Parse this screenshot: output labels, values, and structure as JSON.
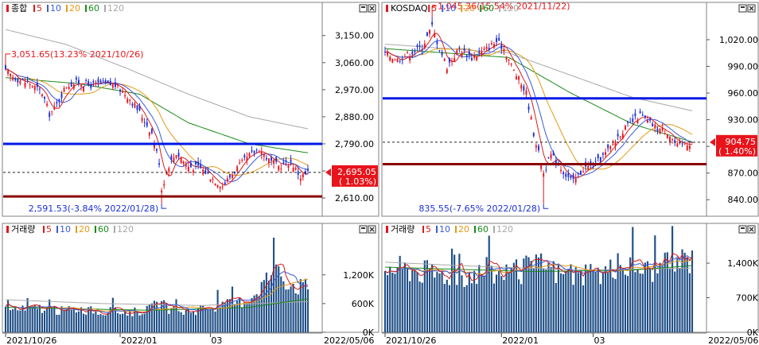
{
  "colors": {
    "up": "#e8141c",
    "down": "#1b2fd6",
    "ma5": "#d81b1b",
    "ma10": "#3b5bd8",
    "ma20": "#e39a17",
    "ma60": "#1a8a1a",
    "ma120": "#a8a8a8",
    "support": "#8b0000",
    "resistance": "#0018e6",
    "volume": "#1f4f86",
    "price_badge": "#e8141c"
  },
  "icons": {
    "maximize": "maximize-icon",
    "close": "close-icon",
    "price_marker": "triangle-left-icon"
  },
  "legend_labels": {
    "ma5": "5",
    "ma10": "10",
    "ma20": "20",
    "ma60": "60",
    "ma120": "120"
  },
  "x_labels": [
    "2021/10/26",
    "2022/01",
    "03",
    "2022/05/06"
  ],
  "chart_data": [
    {
      "type": "candlestick",
      "panel": "top-left",
      "legend_title": "종합",
      "legend": [
        "5",
        "10",
        "20",
        "60",
        "120"
      ],
      "ylim": [
        2560,
        3210
      ],
      "yticks": [
        2610,
        2700,
        2790,
        2880,
        2970,
        3060,
        3150
      ],
      "ytick_labels": [
        "2,610.00",
        "",
        "2,790.00",
        "2,880.00",
        "2,970.00",
        "3,060.00",
        "3,150.00"
      ],
      "current": {
        "value": 2695.05,
        "label": "2,695.05",
        "change": "( 1.03%)"
      },
      "hlines": [
        {
          "role": "resistance",
          "value": 2790
        },
        {
          "role": "support",
          "value": 2615
        }
      ],
      "dashed_line": 2695.05,
      "annotations": [
        {
          "text": "3,051.65(13.23% 2021/10/26)",
          "x_index": 0,
          "value": 3051.65
        },
        {
          "text": "2,591.53(-3.84% 2022/01/28)",
          "x_index": 64,
          "value": 2591.53
        }
      ],
      "anchors": [
        [
          0,
          3030
        ],
        [
          5,
          3005
        ],
        [
          10,
          2990
        ],
        [
          15,
          2960
        ],
        [
          18,
          2890
        ],
        [
          20,
          2905
        ],
        [
          25,
          2985
        ],
        [
          30,
          2995
        ],
        [
          35,
          2985
        ],
        [
          40,
          2990
        ],
        [
          45,
          2985
        ],
        [
          50,
          2950
        ],
        [
          55,
          2895
        ],
        [
          60,
          2825
        ],
        [
          63,
          2730
        ],
        [
          64,
          2640
        ],
        [
          67,
          2720
        ],
        [
          70,
          2760
        ],
        [
          75,
          2715
        ],
        [
          80,
          2710
        ],
        [
          85,
          2675
        ],
        [
          89,
          2650
        ],
        [
          95,
          2710
        ],
        [
          100,
          2750
        ],
        [
          104,
          2775
        ],
        [
          108,
          2735
        ],
        [
          112,
          2715
        ],
        [
          117,
          2730
        ],
        [
          121,
          2680
        ],
        [
          124,
          2695
        ]
      ],
      "ma60_anchors": [
        [
          0,
          3010
        ],
        [
          30,
          2990
        ],
        [
          55,
          2955
        ],
        [
          75,
          2860
        ],
        [
          100,
          2790
        ],
        [
          124,
          2760
        ]
      ],
      "ma120_anchors": [
        [
          0,
          3170
        ],
        [
          25,
          3120
        ],
        [
          50,
          3040
        ],
        [
          75,
          2955
        ],
        [
          100,
          2880
        ],
        [
          124,
          2840
        ]
      ]
    },
    {
      "type": "candlestick",
      "panel": "top-right",
      "legend_title": "KOSDAQ",
      "legend": [
        "5",
        "10",
        "20",
        "60",
        "120"
      ],
      "ylim": [
        825,
        1045
      ],
      "yticks": [
        840,
        870,
        900,
        930,
        960,
        990,
        1020
      ],
      "ytick_labels": [
        "840.00",
        "870.00",
        "",
        "930.00",
        "960.00",
        "990.00",
        "1,020.00"
      ],
      "current": {
        "value": 904.75,
        "label": "904.75",
        "change": "( 1.40%)"
      },
      "hlines": [
        {
          "role": "resistance",
          "value": 954
        },
        {
          "role": "support",
          "value": 880
        }
      ],
      "dashed_line": 904.75,
      "annotations": [
        {
          "text": "1,045.36(15.54% 2021/11/22)",
          "x_index": 19,
          "value": 1045.36
        },
        {
          "text": "835.55(-7.65% 2022/01/28)",
          "x_index": 64,
          "value": 835.55
        }
      ],
      "anchors": [
        [
          0,
          1005
        ],
        [
          5,
          998
        ],
        [
          10,
          1005
        ],
        [
          15,
          1012
        ],
        [
          19,
          1035
        ],
        [
          22,
          1010
        ],
        [
          25,
          990
        ],
        [
          30,
          1010
        ],
        [
          35,
          1000
        ],
        [
          40,
          1008
        ],
        [
          45,
          1018
        ],
        [
          48,
          1010
        ],
        [
          52,
          985
        ],
        [
          57,
          960
        ],
        [
          60,
          915
        ],
        [
          64,
          870
        ],
        [
          67,
          890
        ],
        [
          70,
          880
        ],
        [
          73,
          868
        ],
        [
          76,
          860
        ],
        [
          80,
          875
        ],
        [
          85,
          880
        ],
        [
          90,
          895
        ],
        [
          95,
          915
        ],
        [
          100,
          928
        ],
        [
          103,
          935
        ],
        [
          106,
          928
        ],
        [
          110,
          920
        ],
        [
          114,
          917
        ],
        [
          118,
          900
        ],
        [
          121,
          903
        ],
        [
          124,
          905
        ]
      ],
      "ma60_anchors": [
        [
          0,
          1010
        ],
        [
          25,
          1005
        ],
        [
          50,
          1000
        ],
        [
          75,
          960
        ],
        [
          100,
          925
        ],
        [
          124,
          905
        ]
      ],
      "ma120_anchors": [
        [
          0,
          1015
        ],
        [
          25,
          1010
        ],
        [
          50,
          1005
        ],
        [
          75,
          980
        ],
        [
          100,
          955
        ],
        [
          124,
          940
        ]
      ]
    },
    {
      "type": "bar",
      "panel": "bottom-left",
      "legend_title": "거래량",
      "legend": [
        "5",
        "10",
        "20",
        "60",
        "120"
      ],
      "ylim": [
        0,
        1960
      ],
      "yticks": [
        0,
        600,
        1200
      ],
      "ytick_labels": [
        "0K",
        "600K",
        "1,200K"
      ],
      "anchors": [
        [
          0,
          480
        ],
        [
          8,
          470
        ],
        [
          14,
          520
        ],
        [
          20,
          450
        ],
        [
          25,
          460
        ],
        [
          30,
          500
        ],
        [
          38,
          420
        ],
        [
          44,
          440
        ],
        [
          52,
          430
        ],
        [
          58,
          470
        ],
        [
          64,
          620
        ],
        [
          67,
          460
        ],
        [
          72,
          430
        ],
        [
          78,
          460
        ],
        [
          84,
          520
        ],
        [
          90,
          570
        ],
        [
          96,
          640
        ],
        [
          101,
          760
        ],
        [
          106,
          1060
        ],
        [
          110,
          1310
        ],
        [
          114,
          1160
        ],
        [
          118,
          1010
        ],
        [
          121,
          960
        ],
        [
          124,
          930
        ]
      ],
      "ma60_anchors": [
        [
          0,
          520
        ],
        [
          60,
          460
        ],
        [
          100,
          520
        ],
        [
          124,
          700
        ]
      ],
      "ma120_anchors": [
        [
          0,
          680
        ],
        [
          40,
          600
        ],
        [
          80,
          560
        ],
        [
          124,
          640
        ]
      ]
    },
    {
      "type": "bar",
      "panel": "bottom-right",
      "legend_title": "거래량",
      "legend": [
        "5",
        "10",
        "20",
        "60",
        "120"
      ],
      "ylim": [
        0,
        1900
      ],
      "yticks": [
        0,
        700,
        1400
      ],
      "ytick_labels": [
        "0K",
        "700K",
        "1,400K"
      ],
      "anchors": [
        [
          0,
          1320
        ],
        [
          10,
          1280
        ],
        [
          20,
          1200
        ],
        [
          30,
          1160
        ],
        [
          40,
          1220
        ],
        [
          50,
          1180
        ],
        [
          56,
          1260
        ],
        [
          60,
          1320
        ],
        [
          64,
          1380
        ],
        [
          70,
          1200
        ],
        [
          76,
          1160
        ],
        [
          82,
          1120
        ],
        [
          88,
          1220
        ],
        [
          94,
          1320
        ],
        [
          100,
          1360
        ],
        [
          106,
          1260
        ],
        [
          112,
          1320
        ],
        [
          118,
          1420
        ],
        [
          121,
          1500
        ],
        [
          124,
          1460
        ]
      ],
      "ma60_anchors": [
        [
          0,
          1320
        ],
        [
          60,
          1230
        ],
        [
          100,
          1260
        ],
        [
          124,
          1350
        ]
      ],
      "ma120_anchors": [
        [
          0,
          1420
        ],
        [
          40,
          1330
        ],
        [
          80,
          1260
        ],
        [
          124,
          1300
        ]
      ]
    }
  ]
}
